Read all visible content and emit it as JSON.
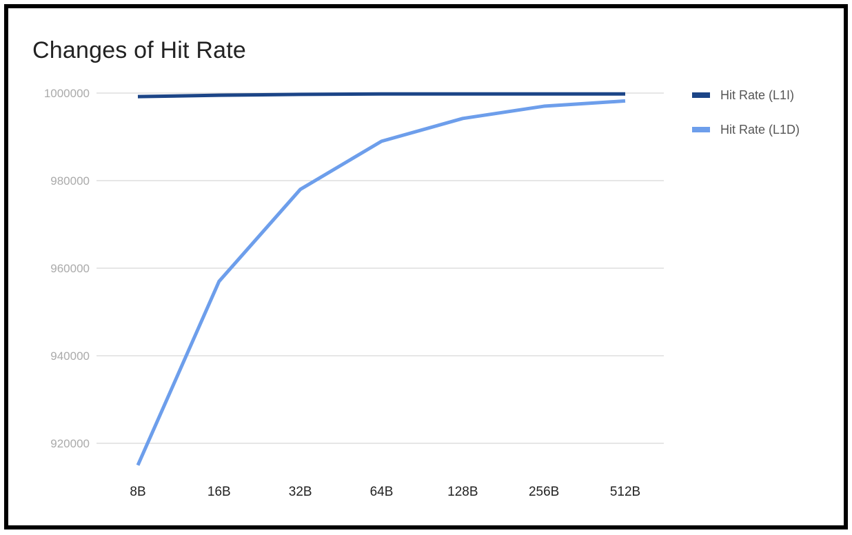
{
  "chart_data": {
    "type": "line",
    "title": "Changes of Hit Rate",
    "xlabel": "",
    "ylabel": "",
    "categories": [
      "8B",
      "16B",
      "32B",
      "64B",
      "128B",
      "256B",
      "512B"
    ],
    "y_ticks": [
      920000,
      940000,
      960000,
      980000,
      1000000
    ],
    "ylim": [
      914500,
      1000000
    ],
    "grid": true,
    "legend_position": "right",
    "series": [
      {
        "name": "Hit Rate (L1I)",
        "color": "#1c4587",
        "values": [
          999200,
          999500,
          999700,
          999800,
          999800,
          999800,
          999800
        ]
      },
      {
        "name": "Hit Rate (L1D)",
        "color": "#6d9eeb",
        "values": [
          915000,
          957000,
          978000,
          989000,
          994200,
          997000,
          998200
        ]
      }
    ]
  }
}
